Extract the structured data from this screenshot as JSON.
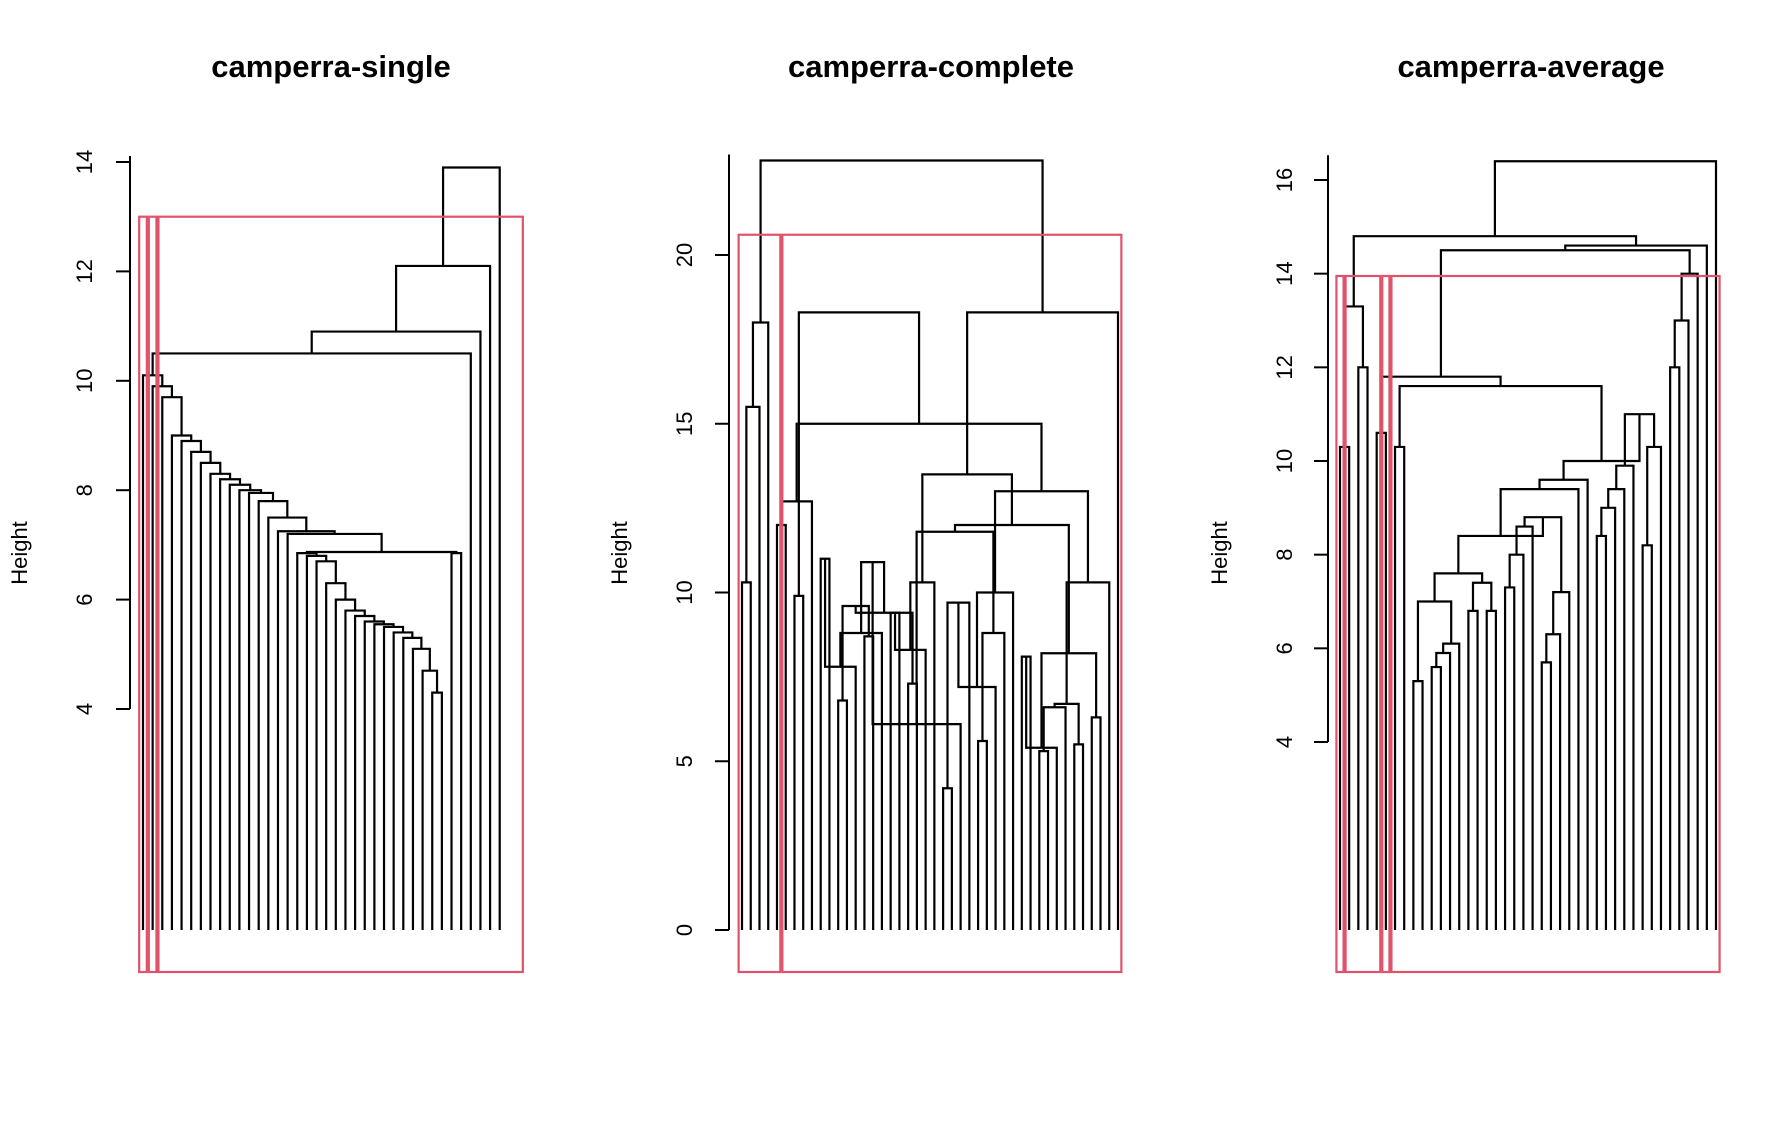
{
  "chart_data": [
    {
      "type": "dendrogram",
      "title": "camperra-single",
      "ylabel": "Height",
      "yticks": [
        4,
        6,
        8,
        10,
        12,
        14
      ],
      "ylim": [
        4,
        14
      ],
      "n_leaves": 40,
      "merges": [
        {
          "l": [
            30,
            31
          ],
          "h": 4.3
        },
        {
          "l": [
            29,
            "m1"
          ],
          "h": 4.7
        },
        {
          "l": [
            28,
            "m2"
          ],
          "h": 5.1
        },
        {
          "l": [
            27,
            "m3"
          ],
          "h": 5.3
        },
        {
          "l": [
            26,
            "m4"
          ],
          "h": 5.4
        },
        {
          "l": [
            25,
            "m5"
          ],
          "h": 5.5
        },
        {
          "l": [
            24,
            "m6"
          ],
          "h": 5.55
        },
        {
          "l": [
            23,
            "m7"
          ],
          "h": 5.6
        },
        {
          "l": [
            22,
            "m8"
          ],
          "h": 5.7
        },
        {
          "l": [
            21,
            "m9"
          ],
          "h": 5.8
        },
        {
          "l": [
            20,
            "m10"
          ],
          "h": 6.0
        },
        {
          "l": [
            19,
            "m11"
          ],
          "h": 6.3
        },
        {
          "l": [
            18,
            "m12"
          ],
          "h": 6.7
        },
        {
          "l": [
            17,
            "m13"
          ],
          "h": 6.8
        },
        {
          "l": [
            16,
            "m14"
          ],
          "h": 6.85
        },
        {
          "l": [
            32,
            33
          ],
          "h": 6.85
        },
        {
          "l": [
            "m15",
            "m16"
          ],
          "h": 6.87
        },
        {
          "l": [
            15,
            "m17"
          ],
          "h": 7.2
        },
        {
          "l": [
            14,
            "m18"
          ],
          "h": 7.25
        },
        {
          "l": [
            13,
            "m19"
          ],
          "h": 7.5
        },
        {
          "l": [
            12,
            "m20"
          ],
          "h": 7.8
        },
        {
          "l": [
            11,
            "m21"
          ],
          "h": 7.95
        },
        {
          "l": [
            10,
            "m22"
          ],
          "h": 8.0
        },
        {
          "l": [
            9,
            "m23"
          ],
          "h": 8.1
        },
        {
          "l": [
            8,
            "m24"
          ],
          "h": 8.2
        },
        {
          "l": [
            7,
            "m25"
          ],
          "h": 8.3
        },
        {
          "l": [
            6,
            "m26"
          ],
          "h": 8.5
        },
        {
          "l": [
            5,
            "m27"
          ],
          "h": 8.7
        },
        {
          "l": [
            4,
            "m28"
          ],
          "h": 8.9
        },
        {
          "l": [
            3,
            "m29"
          ],
          "h": 9.0
        },
        {
          "l": [
            2,
            "m30"
          ],
          "h": 9.7
        },
        {
          "l": [
            1,
            "m31"
          ],
          "h": 9.9
        },
        {
          "l": [
            0,
            "m32"
          ],
          "h": 10.1
        },
        {
          "l": [
            34,
            "m33"
          ],
          "h": 10.5
        },
        {
          "l": [
            35,
            "m34"
          ],
          "h": 10.9
        },
        {
          "l": [
            36,
            "m35"
          ],
          "h": 12.1
        },
        {
          "l": [
            37,
            "m36"
          ],
          "h": 13.9
        }
      ],
      "cluster_boxes": [
        {
          "from": 0,
          "to": 0,
          "top": 13.0
        },
        {
          "from": 1,
          "to": 1,
          "top": 13.0
        },
        {
          "from": 2,
          "to": 39,
          "top": 13.0
        }
      ]
    },
    {
      "type": "dendrogram",
      "title": "camperra-complete",
      "ylabel": "Height",
      "yticks": [
        0,
        5,
        10,
        15,
        20
      ],
      "ylim": [
        0,
        22.8
      ],
      "n_leaves": 44,
      "merges": [
        {
          "l": [
            0,
            1
          ],
          "h": 10.3
        },
        {
          "l": [
            2,
            "m1"
          ],
          "h": 15.5
        },
        {
          "l": [
            3,
            "m2"
          ],
          "h": 18.0
        },
        {
          "l": [
            4,
            5
          ],
          "h": 12.0
        },
        {
          "l": [
            6,
            7
          ],
          "h": 9.9
        },
        {
          "l": [
            8,
            "m4"
          ],
          "h": 12.7
        },
        {
          "l": [
            9,
            10
          ],
          "h": 11.0
        },
        {
          "l": [
            11,
            12
          ],
          "h": 6.8
        },
        {
          "l": [
            13,
            "m7"
          ],
          "h": 7.8
        },
        {
          "l": [
            14,
            15
          ],
          "h": 8.7
        },
        {
          "l": [
            16,
            "m9"
          ],
          "h": 8.8
        },
        {
          "l": [
            "m8",
            "m10"
          ],
          "h": 9.6
        },
        {
          "l": [
            17,
            18
          ],
          "h": 9.4
        },
        {
          "l": [
            19,
            20
          ],
          "h": 7.3
        },
        {
          "l": [
            21,
            "m13"
          ],
          "h": 8.3
        },
        {
          "l": [
            "m12",
            "m14"
          ],
          "h": 9.4
        },
        {
          "l": [
            "m15",
            22
          ],
          "h": 10.3
        },
        {
          "l": [
            "m11",
            "m16"
          ],
          "h": 10.9
        },
        {
          "l": [
            23,
            24
          ],
          "h": 4.2
        },
        {
          "l": [
            25,
            "m18"
          ],
          "h": 6.1
        },
        {
          "l": [
            26,
            "m19"
          ],
          "h": 9.7
        },
        {
          "l": [
            27,
            28
          ],
          "h": 5.6
        },
        {
          "l": [
            29,
            "m21"
          ],
          "h": 7.2
        },
        {
          "l": [
            30,
            "m22"
          ],
          "h": 8.8
        },
        {
          "l": [
            31,
            "m23"
          ],
          "h": 10.0
        },
        {
          "l": [
            "m20",
            "m24"
          ],
          "h": 11.8
        },
        {
          "l": [
            32,
            33
          ],
          "h": 8.1
        },
        {
          "l": [
            34,
            35
          ],
          "h": 5.3
        },
        {
          "l": [
            36,
            "m27"
          ],
          "h": 5.4
        },
        {
          "l": [
            37,
            "m28"
          ],
          "h": 6.6
        },
        {
          "l": [
            38,
            39
          ],
          "h": 5.5
        },
        {
          "l": [
            40,
            41
          ],
          "h": 6.3
        },
        {
          "l": [
            "m30",
            "m31"
          ],
          "h": 6.7
        },
        {
          "l": [
            "m29",
            "m32"
          ],
          "h": 8.2
        },
        {
          "l": [
            42,
            "m33"
          ],
          "h": 10.3
        },
        {
          "l": [
            "m26",
            "m34"
          ],
          "h": 12.0
        },
        {
          "l": [
            "m25",
            "m35"
          ],
          "h": 13.0
        },
        {
          "l": [
            "m17",
            "m36"
          ],
          "h": 13.5
        },
        {
          "l": [
            "m6",
            "m37"
          ],
          "h": 15.0
        },
        {
          "l": [
            "m38",
            43
          ],
          "h": 18.3
        },
        {
          "l": [
            "m5",
            "m39"
          ],
          "h": 18.3
        },
        {
          "l": [
            "m3",
            "m40"
          ],
          "h": 22.8
        }
      ],
      "cluster_boxes": [
        {
          "from": 0,
          "to": 4,
          "top": 20.6
        },
        {
          "from": 5,
          "to": 43,
          "top": 20.6
        }
      ]
    },
    {
      "type": "dendrogram",
      "title": "camperra-average",
      "ylabel": "Height",
      "yticks": [
        4,
        6,
        8,
        10,
        12,
        14,
        16
      ],
      "ylim": [
        4,
        16.4
      ],
      "n_leaves": 42,
      "merges": [
        {
          "l": [
            0,
            1
          ],
          "h": 10.3
        },
        {
          "l": [
            2,
            3
          ],
          "h": 12.0
        },
        {
          "l": [
            "m1",
            "m2"
          ],
          "h": 13.3
        },
        {
          "l": [
            4,
            5
          ],
          "h": 10.6
        },
        {
          "l": [
            6,
            7
          ],
          "h": 10.3
        },
        {
          "l": [
            8,
            9
          ],
          "h": 5.3
        },
        {
          "l": [
            10,
            11
          ],
          "h": 5.6
        },
        {
          "l": [
            12,
            "m7"
          ],
          "h": 5.9
        },
        {
          "l": [
            13,
            "m8"
          ],
          "h": 6.1
        },
        {
          "l": [
            "m6",
            "m9"
          ],
          "h": 7.0
        },
        {
          "l": [
            14,
            15
          ],
          "h": 6.8
        },
        {
          "l": [
            16,
            17
          ],
          "h": 6.8
        },
        {
          "l": [
            "m11",
            "m12"
          ],
          "h": 7.4
        },
        {
          "l": [
            "m10",
            "m13"
          ],
          "h": 7.6
        },
        {
          "l": [
            18,
            19
          ],
          "h": 7.3
        },
        {
          "l": [
            20,
            "m15"
          ],
          "h": 8.0
        },
        {
          "l": [
            21,
            "m16"
          ],
          "h": 8.6
        },
        {
          "l": [
            22,
            23
          ],
          "h": 5.7
        },
        {
          "l": [
            24,
            "m18"
          ],
          "h": 6.3
        },
        {
          "l": [
            25,
            "m19"
          ],
          "h": 7.2
        },
        {
          "l": [
            "m17",
            "m20"
          ],
          "h": 8.8
        },
        {
          "l": [
            "m14",
            "m21"
          ],
          "h": 8.4
        },
        {
          "l": [
            "m22",
            26
          ],
          "h": 9.4
        },
        {
          "l": [
            27,
            "m23"
          ],
          "h": 9.6
        },
        {
          "l": [
            28,
            29
          ],
          "h": 8.4
        },
        {
          "l": [
            30,
            "m25"
          ],
          "h": 9.0
        },
        {
          "l": [
            31,
            "m26"
          ],
          "h": 9.4
        },
        {
          "l": [
            32,
            "m27"
          ],
          "h": 9.9
        },
        {
          "l": [
            33,
            34
          ],
          "h": 8.2
        },
        {
          "l": [
            35,
            "m29"
          ],
          "h": 10.3
        },
        {
          "l": [
            "m28",
            "m30"
          ],
          "h": 11.0
        },
        {
          "l": [
            "m24",
            "m31"
          ],
          "h": 10.0
        },
        {
          "l": [
            "m5",
            "m32"
          ],
          "h": 11.6
        },
        {
          "l": [
            "m4",
            "m33"
          ],
          "h": 11.8
        },
        {
          "l": [
            36,
            37
          ],
          "h": 12.0
        },
        {
          "l": [
            "m35",
            38
          ],
          "h": 13.0
        },
        {
          "l": [
            "m36",
            39
          ],
          "h": 14.0
        },
        {
          "l": [
            "m34",
            "m37"
          ],
          "h": 14.5
        },
        {
          "l": [
            "m38",
            40
          ],
          "h": 14.6
        },
        {
          "l": [
            "m3",
            "m39"
          ],
          "h": 14.8
        },
        {
          "l": [
            "m40",
            41
          ],
          "h": 16.4
        }
      ],
      "cluster_boxes": [
        {
          "from": 0,
          "to": 0,
          "top": 13.95
        },
        {
          "from": 1,
          "to": 4,
          "top": 13.95
        },
        {
          "from": 5,
          "to": 5,
          "top": 13.95
        },
        {
          "from": 6,
          "to": 41,
          "top": 13.95
        }
      ]
    }
  ],
  "colors": {
    "cluster_rect": "#DF536B",
    "dendro_line": "#000000"
  }
}
